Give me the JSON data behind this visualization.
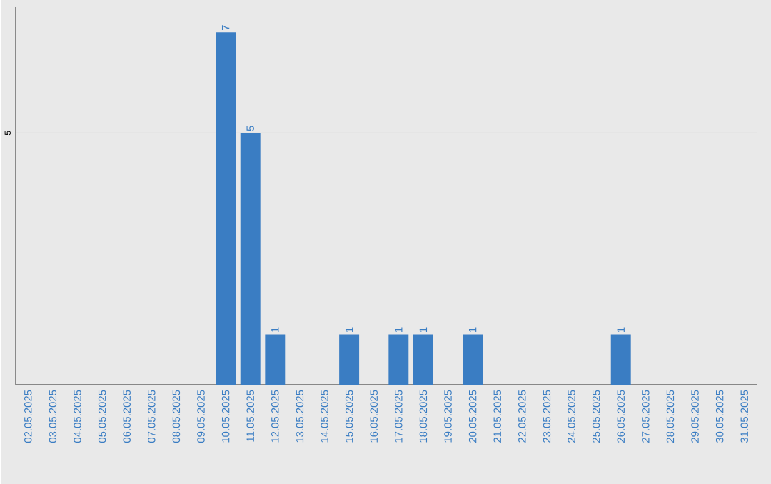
{
  "chart_data": {
    "type": "bar",
    "categories": [
      "02.05.2025",
      "03.05.2025",
      "04.05.2025",
      "05.05.2025",
      "06.05.2025",
      "07.05.2025",
      "08.05.2025",
      "09.05.2025",
      "10.05.2025",
      "11.05.2025",
      "12.05.2025",
      "13.05.2025",
      "14.05.2025",
      "15.05.2025",
      "16.05.2025",
      "17.05.2025",
      "18.05.2025",
      "19.05.2025",
      "20.05.2025",
      "21.05.2025",
      "22.05.2025",
      "23.05.2025",
      "24.05.2025",
      "25.05.2025",
      "26.05.2025",
      "27.05.2025",
      "28.05.2025",
      "29.05.2025",
      "30.05.2025",
      "31.05.2025"
    ],
    "values": [
      null,
      null,
      null,
      null,
      null,
      null,
      null,
      null,
      7,
      5,
      1,
      null,
      null,
      1,
      null,
      1,
      1,
      null,
      1,
      null,
      null,
      null,
      null,
      null,
      1,
      null,
      null,
      null,
      null,
      null
    ],
    "color": "#3a7dc3",
    "ylim": [
      0,
      7.5
    ],
    "yticks": [
      {
        "value": 5,
        "label": "5"
      }
    ],
    "grid": "y",
    "data_labels": true
  }
}
